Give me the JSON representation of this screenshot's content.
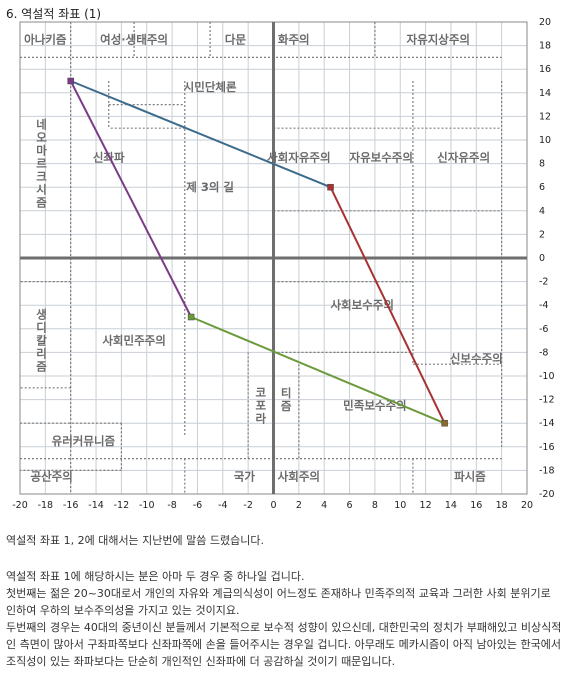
{
  "title": "6. 역설적 좌표 (1)",
  "chart_data": {
    "type": "scatter",
    "xlim": [
      -20,
      20
    ],
    "ylim": [
      -20,
      20
    ],
    "x_ticks": [
      -20,
      -18,
      -16,
      -14,
      -12,
      -10,
      -8,
      -6,
      -4,
      -2,
      0,
      2,
      4,
      6,
      8,
      10,
      12,
      14,
      16,
      18,
      20
    ],
    "y_ticks": [
      20,
      18,
      16,
      14,
      12,
      10,
      8,
      6,
      4,
      2,
      0,
      -2,
      -4,
      -6,
      -8,
      -10,
      -12,
      -14,
      -16,
      -18,
      -20
    ],
    "grid": true,
    "points": [
      {
        "x": -16,
        "y": 15,
        "color": "#7b3b86"
      },
      {
        "x": 4.5,
        "y": 6,
        "color": "#a83232"
      },
      {
        "x": -6.5,
        "y": -5,
        "color": "#6a9a3a"
      },
      {
        "x": 13.5,
        "y": -14,
        "color": "#8a6a2a"
      }
    ],
    "segments": [
      {
        "from": [
          -16,
          15
        ],
        "to": [
          4.5,
          6
        ],
        "color": "#3c6b8c"
      },
      {
        "from": [
          4.5,
          6
        ],
        "to": [
          13.5,
          -14
        ],
        "color": "#a83232"
      },
      {
        "from": [
          -16,
          15
        ],
        "to": [
          -6.5,
          -5
        ],
        "color": "#7b3b86"
      },
      {
        "from": [
          -6.5,
          -5
        ],
        "to": [
          13.5,
          -14
        ],
        "color": "#6a9a3a"
      }
    ],
    "region_borders": [
      {
        "from": [
          -20,
          17
        ],
        "to": [
          18,
          17
        ]
      },
      {
        "from": [
          -16,
          20
        ],
        "to": [
          -16,
          -20
        ]
      },
      {
        "from": [
          -11,
          20
        ],
        "to": [
          -11,
          17
        ]
      },
      {
        "from": [
          -5,
          20
        ],
        "to": [
          -5,
          17
        ]
      },
      {
        "from": [
          8,
          20
        ],
        "to": [
          8,
          17
        ]
      },
      {
        "from": [
          -13,
          13
        ],
        "to": [
          -7,
          13
        ]
      },
      {
        "from": [
          -7,
          15
        ],
        "to": [
          -7,
          -15
        ]
      },
      {
        "from": [
          -13,
          15
        ],
        "to": [
          -13,
          11
        ]
      },
      {
        "from": [
          -7,
          11
        ],
        "to": [
          -13,
          11
        ]
      },
      {
        "from": [
          11,
          15
        ],
        "to": [
          11,
          -9
        ]
      },
      {
        "from": [
          0,
          11
        ],
        "to": [
          18,
          11
        ]
      },
      {
        "from": [
          0,
          11
        ],
        "to": [
          0,
          4
        ]
      },
      {
        "from": [
          18,
          15
        ],
        "to": [
          18,
          -16
        ]
      },
      {
        "from": [
          0,
          4
        ],
        "to": [
          18,
          4
        ]
      },
      {
        "from": [
          -16,
          -2
        ],
        "to": [
          -20,
          -2
        ]
      },
      {
        "from": [
          -16,
          -11
        ],
        "to": [
          -20,
          -11
        ]
      },
      {
        "from": [
          0,
          -2
        ],
        "to": [
          11,
          -2
        ]
      },
      {
        "from": [
          11,
          -9
        ],
        "to": [
          18,
          -9
        ]
      },
      {
        "from": [
          5,
          -8
        ],
        "to": [
          11,
          -8
        ]
      },
      {
        "from": [
          -2,
          -8
        ],
        "to": [
          -2,
          -17
        ]
      },
      {
        "from": [
          0,
          -8
        ],
        "to": [
          5,
          -8
        ]
      },
      {
        "from": [
          0,
          -8
        ],
        "to": [
          0,
          -17
        ]
      },
      {
        "from": [
          2,
          -9
        ],
        "to": [
          2,
          -17
        ]
      },
      {
        "from": [
          -20,
          -14
        ],
        "to": [
          -12,
          -14
        ]
      },
      {
        "from": [
          -12,
          -14
        ],
        "to": [
          -12,
          -18
        ]
      },
      {
        "from": [
          -20,
          -17
        ],
        "to": [
          18,
          -17
        ]
      },
      {
        "from": [
          -7,
          -17
        ],
        "to": [
          -7,
          -20
        ]
      },
      {
        "from": [
          -12,
          -18
        ],
        "to": [
          -20,
          -18
        ]
      },
      {
        "from": [
          0,
          -17
        ],
        "to": [
          0,
          -20
        ]
      },
      {
        "from": [
          11,
          -17
        ],
        "to": [
          11,
          -20
        ]
      }
    ],
    "region_labels": [
      {
        "text": "아나키즘",
        "x": -18,
        "y": 18.5
      },
      {
        "text": "여성·생태주의",
        "x": -11,
        "y": 18.5
      },
      {
        "text": "다문",
        "x": -3,
        "y": 18.5
      },
      {
        "text": "화주의",
        "x": 1.6,
        "y": 18.5
      },
      {
        "text": "자유지상주의",
        "x": 13,
        "y": 18.5
      },
      {
        "text": "시민단체론",
        "x": -5,
        "y": 14.5
      },
      {
        "text": "신좌파",
        "x": -13,
        "y": 8.5
      },
      {
        "text": "사회자유주의",
        "x": 2,
        "y": 8.5
      },
      {
        "text": "자유보수주의",
        "x": 8.5,
        "y": 8.5
      },
      {
        "text": "신자유주의",
        "x": 15,
        "y": 8.5
      },
      {
        "text": "제 3의 길",
        "x": -5,
        "y": 6
      },
      {
        "text": "사회보수주의",
        "x": 7,
        "y": -4
      },
      {
        "text": "사회민주주의",
        "x": -11,
        "y": -7
      },
      {
        "text": "신보수주의",
        "x": 16,
        "y": -8.5
      },
      {
        "text": "민족보수주의",
        "x": 8,
        "y": -12.5
      },
      {
        "text": "유러커뮤니즘",
        "x": -15,
        "y": -15.5
      },
      {
        "text": "공산주의",
        "x": -17.5,
        "y": -18.5
      },
      {
        "text": "국가",
        "x": -2.3,
        "y": -18.5
      },
      {
        "text": "사회주의",
        "x": 2,
        "y": -18.5
      },
      {
        "text": "파시즘",
        "x": 15.5,
        "y": -18.5
      }
    ],
    "vertical_labels": [
      {
        "text": "네오마르크시즘",
        "x": -18.3,
        "y": 8
      },
      {
        "text": "생디칼리즘",
        "x": -18.3,
        "y": -7
      },
      {
        "text": "코포라",
        "x": -1,
        "y": -12.5
      },
      {
        "text": "티즘",
        "x": 1,
        "y": -12
      }
    ]
  },
  "caption1": "역설적 좌표 1, 2에 대해서는 지난번에 말씀 드렸습니다.",
  "paragraphs": [
    "역설적 좌표 1에 해당하시는 분은 아마 두 경우 중 하나일 겁니다.",
    "첫번째는 젊은 20~30대로서 개인의 자유와 계급의식성이 어느정도 존재하나 민족주의적 교육과 그러한 사회 분위기로 인하여 우하의 보수주의성을 가지고 있는 것이지요.",
    "두번째의 경우는 40대의 중년이신 분들께서 기본적으로 보수적 성향이 있으신데, 대한민국의 정치가 부패해있고 비상식적인 측면이 많아서 구좌파쪽보다 신좌파쪽에 손을 들어주시는 경우일 겁니다. 아무래도 메카시즘이 아직 남아있는 한국에서 조직성이 있는 좌파보다는 단순히 개인적인 신좌파에 더 공감하실 것이기 때문입니다."
  ]
}
